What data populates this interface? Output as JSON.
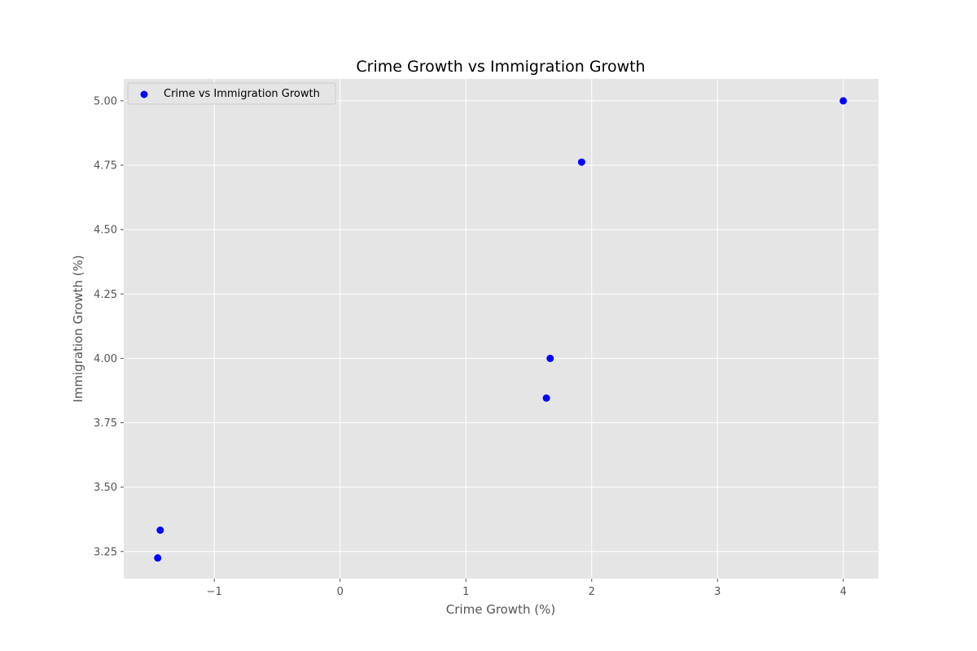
{
  "chart_data": {
    "type": "scatter",
    "title": "Crime Growth vs Immigration Growth",
    "xlabel": "Crime Growth (%)",
    "ylabel": "Immigration Growth (%)",
    "xlim": [
      -1.72,
      4.28
    ],
    "ylim": [
      3.145,
      5.085
    ],
    "xticks": [
      -1,
      0,
      1,
      2,
      3,
      4
    ],
    "xtick_labels": [
      "−1",
      "0",
      "1",
      "2",
      "3",
      "4"
    ],
    "yticks": [
      3.25,
      3.5,
      3.75,
      4.0,
      4.25,
      4.5,
      4.75,
      5.0
    ],
    "ytick_labels": [
      "3.25",
      "3.50",
      "3.75",
      "4.00",
      "4.25",
      "4.50",
      "4.75",
      "5.00"
    ],
    "grid": true,
    "legend_position": "top-left",
    "series": [
      {
        "name": "Crime vs Immigration Growth",
        "color": "#0000ff",
        "x": [
          -1.45,
          -1.43,
          1.64,
          1.67,
          1.92,
          4.0
        ],
        "y": [
          3.225,
          3.333,
          3.846,
          4.0,
          4.762,
          5.0
        ]
      }
    ],
    "colors": {
      "plot_background": "#e5e5e5",
      "grid": "#ffffff",
      "marker": "#0000ff"
    }
  }
}
